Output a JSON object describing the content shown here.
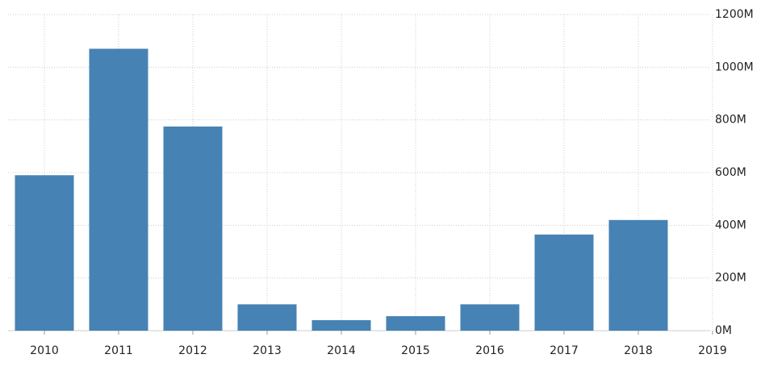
{
  "chart_data": {
    "type": "bar",
    "categories": [
      "2010",
      "2011",
      "2012",
      "2013",
      "2014",
      "2015",
      "2016",
      "2017",
      "2018",
      "2019"
    ],
    "values": [
      590,
      1070,
      775,
      100,
      40,
      55,
      100,
      365,
      420,
      null
    ],
    "color": "#4682b4",
    "ylim": [
      0,
      1200
    ],
    "yticks": [
      {
        "value": 0,
        "label": "0M"
      },
      {
        "value": 200,
        "label": "200M"
      },
      {
        "value": 400,
        "label": "400M"
      },
      {
        "value": 600,
        "label": "600M"
      },
      {
        "value": 800,
        "label": "800M"
      },
      {
        "value": 1000,
        "label": "1000M"
      },
      {
        "value": 1200,
        "label": "1200M"
      }
    ],
    "grid": true
  }
}
